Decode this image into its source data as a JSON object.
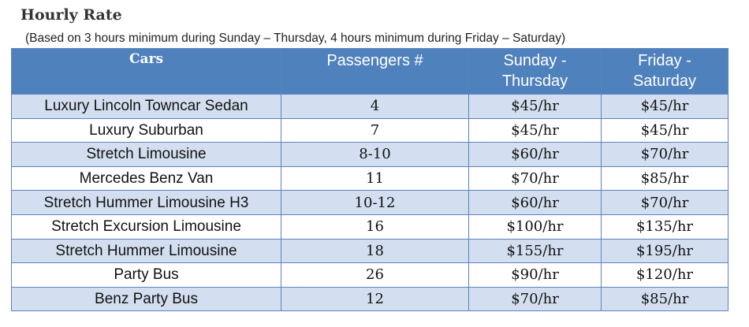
{
  "title": "Hourly Rate",
  "subtitle": "(Based on 3 hours minimum during Sunday – Thursday, 4 hours minimum during Friday – Saturday)",
  "headers": {
    "cars": "Cars",
    "passengers": "Passengers #",
    "sun_line1": "Sunday -",
    "sun_line2": "Thursday",
    "fri_line1": "Friday -",
    "fri_line2": "Saturday"
  },
  "rows": [
    {
      "car": "Luxury Lincoln Towncar Sedan",
      "passengers": "4",
      "sun_thu": "$45/hr",
      "fri_sat": "$45/hr"
    },
    {
      "car": "Luxury Suburban",
      "passengers": "7",
      "sun_thu": "$45/hr",
      "fri_sat": "$45/hr"
    },
    {
      "car": "Stretch Limousine",
      "passengers": "8-10",
      "sun_thu": "$60/hr",
      "fri_sat": "$70/hr"
    },
    {
      "car": "Mercedes Benz Van",
      "passengers": "11",
      "sun_thu": "$70/hr",
      "fri_sat": "$85/hr"
    },
    {
      "car": "Stretch Hummer Limousine H3",
      "passengers": "10-12",
      "sun_thu": "$60/hr",
      "fri_sat": "$70/hr"
    },
    {
      "car": "Stretch Excursion Limousine",
      "passengers": "16",
      "sun_thu": "$100/hr",
      "fri_sat": "$135/hr"
    },
    {
      "car": "Stretch Hummer Limousine",
      "passengers": "18",
      "sun_thu": "$155/hr",
      "fri_sat": "$195/hr"
    },
    {
      "car": "Party Bus",
      "passengers": "26",
      "sun_thu": "$90/hr",
      "fri_sat": "$120/hr"
    },
    {
      "car": "Benz Party Bus",
      "passengers": "12",
      "sun_thu": "$70/hr",
      "fri_sat": "$85/hr"
    }
  ]
}
